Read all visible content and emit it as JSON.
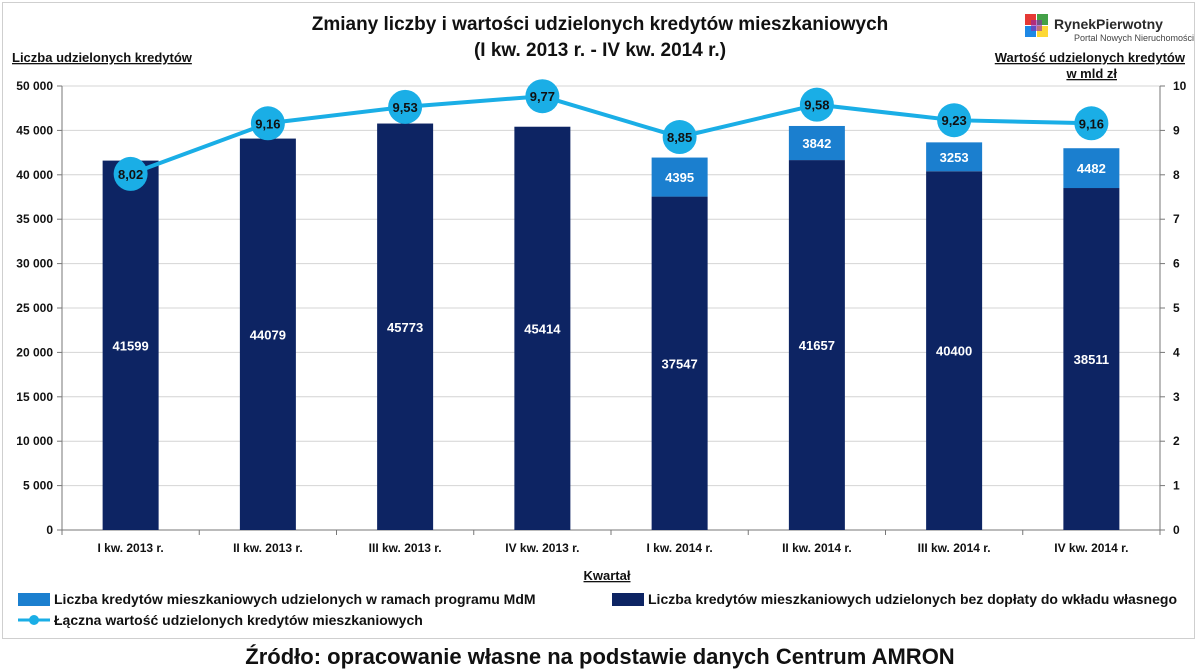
{
  "chart_data": {
    "type": "bar",
    "stacked": true,
    "title_line1": "Zmiany liczby i wartości udzielonych kredytów mieszkaniowych",
    "title_line2": "(I kw. 2013 r. - IV kw. 2014 r.)",
    "ylabel_left": "Liczba udzielonych kredytów",
    "ylabel_right_line1": "Wartość udzielonych kredytów",
    "ylabel_right_line2": "w mld zł",
    "xlabel": "Kwartał",
    "ylim_left": [
      0,
      50000
    ],
    "ylim_right": [
      0,
      10
    ],
    "yticks_left": [
      "0",
      "5 000",
      "10 000",
      "15 000",
      "20 000",
      "25 000",
      "30 000",
      "35 000",
      "40 000",
      "45 000",
      "50 000"
    ],
    "yticks_right": [
      "0",
      "1",
      "2",
      "3",
      "4",
      "5",
      "6",
      "7",
      "8",
      "9",
      "10"
    ],
    "grid": "horizontal",
    "legend_position": "bottom",
    "categories": [
      "I kw. 2013 r.",
      "II kw. 2013 r.",
      "III kw. 2013 r.",
      "IV kw. 2013 r.",
      "I kw. 2014 r.",
      "II kw. 2014 r.",
      "III kw. 2014 r.",
      "IV kw. 2014 r."
    ],
    "series": [
      {
        "name": "Liczba kredytów mieszkaniowych udzielonych bez dopłaty do wkładu własnego",
        "type": "bar",
        "axis": "left",
        "color": "#0d2463",
        "values": [
          41599,
          44079,
          45773,
          45414,
          37547,
          41657,
          40400,
          38511
        ],
        "labels": [
          "41599",
          "44079",
          "45773",
          "45414",
          "37547",
          "41657",
          "40400",
          "38511"
        ]
      },
      {
        "name": "Liczba kredytów mieszkaniowych udzielonych w ramach programu MdM",
        "type": "bar",
        "axis": "left",
        "color": "#1b7fcf",
        "values": [
          0,
          0,
          0,
          0,
          4395,
          3842,
          3253,
          4482
        ],
        "labels": [
          "",
          "",
          "",
          "",
          "4395",
          "3842",
          "3253",
          "4482"
        ]
      },
      {
        "name": "Łączna wartość udzielonych kredytów mieszkaniowych",
        "type": "line",
        "axis": "right",
        "color": "#1aaee6",
        "values": [
          8.02,
          9.16,
          9.53,
          9.77,
          8.85,
          9.58,
          9.23,
          9.16
        ],
        "labels": [
          "8,02",
          "9,16",
          "9,53",
          "9,77",
          "8,85",
          "9,58",
          "9,23",
          "9,16"
        ]
      }
    ]
  },
  "legend": {
    "mdm": "Liczba kredytów mieszkaniowych udzielonych w ramach programu MdM",
    "bez": "Liczba kredytów mieszkaniowych udzielonych bez dopłaty do wkładu własnego",
    "value": "Łączna wartość udzielonych kredytów mieszkaniowych"
  },
  "logo": {
    "name_part1": "Rynek",
    "name_part2": "Pierwotny",
    "tagline": "Portal Nowych Nieruchomości",
    "colors": [
      "#e53935",
      "#43a047",
      "#1e88e5",
      "#fdd835",
      "#8e24aa"
    ]
  },
  "source": "Źródło: opracowanie własne na podstawie danych Centrum AMRON"
}
